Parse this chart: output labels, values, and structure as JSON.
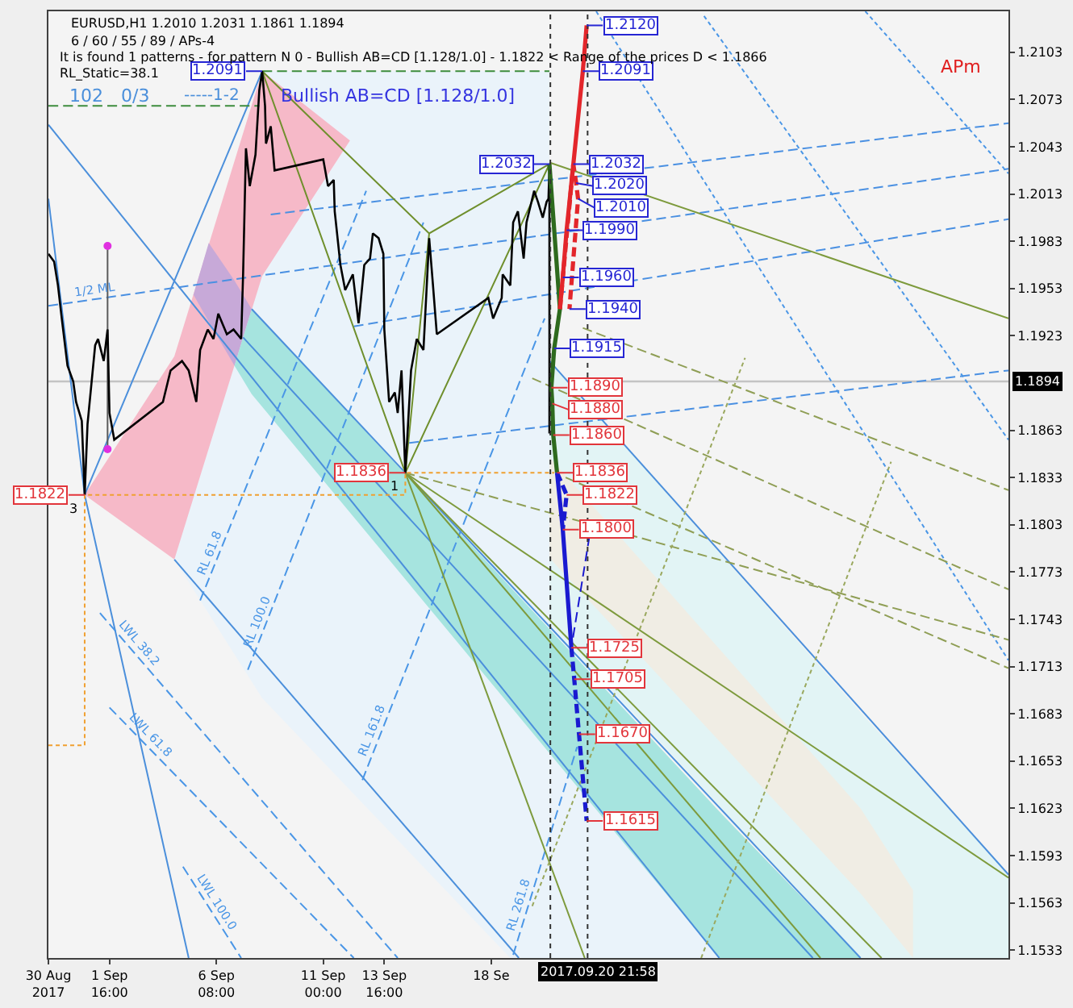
{
  "chart_data": {
    "type": "line",
    "title": "EURUSD,H1 1.2010 1.2031 1.1861 1.1894",
    "subtitle": "6 / 60 / 55 / 89 / APs-4",
    "annotations": [
      "It is found 1 patterns - for pattern N 0 - Bullish AB=CD [1.128/1.0] - 1.1822 < Range of the prices D < 1.1866",
      "RL_Static=38.1",
      "102",
      "0/3",
      "-----1-2",
      "Bullish AB=CD [1.128/1.0]",
      "APm",
      {
        "text": "3",
        "x": "2017-08-31T14:00",
        "y": 1.1822
      },
      {
        "text": "1",
        "x": "2017-09-14T14:00",
        "y": 1.1836
      }
    ],
    "xlim": [
      "2017-08-30T00:00",
      "2017-10-10T22:00"
    ],
    "xticks": [
      {
        "value": "2017-08-30T00:00",
        "label": "30 Aug 2017"
      },
      {
        "value": "2017-09-01T16:00",
        "label": "1 Sep 16:00"
      },
      {
        "value": "2017-09-06T08:00",
        "label": "6 Sep 08:00"
      },
      {
        "value": "2017-09-11T00:00",
        "label": "11 Sep 00:00"
      },
      {
        "value": "2017-09-13T16:00",
        "label": "13 Sep 16:00"
      },
      {
        "value": "2017-09-18T08:00",
        "label": "18 Se"
      }
    ],
    "ylim": [
      1.1528,
      1.2129
    ],
    "yticks": [
      1.2103,
      1.2073,
      1.2043,
      1.2013,
      1.1983,
      1.1953,
      1.1923,
      1.1863,
      1.1833,
      1.1803,
      1.1773,
      1.1743,
      1.1713,
      1.1683,
      1.1653,
      1.1623,
      1.1593,
      1.1563,
      1.1533
    ],
    "ref_lines": [
      {
        "axis": "x",
        "value": "2017-09-20T21:58",
        "label": "2017.09.20 21:58",
        "line_style": "dotted",
        "color": "#333333"
      },
      {
        "axis": "x",
        "value": "2017-09-22T13:00",
        "line_style": "dotted",
        "color": "#333333"
      },
      {
        "axis": "y",
        "value": 1.1894,
        "label": "1.1894",
        "color": "#c4c4c4"
      }
    ],
    "series": [
      {
        "color": "#eaf3fa",
        "x": [
          "2017-09-04T12:00",
          "2017-09-08T08:00",
          "2017-09-19T04:00",
          "2017-09-20T21:00",
          "2017-09-20T21:00",
          "2017-09-28T07:00"
        ],
        "values": [
          null,
          null,
          null,
          null,
          null,
          null
        ],
        "upper": [
          1.1781,
          1.2091,
          1.2091,
          1.2091,
          1.1833,
          1.1528
        ],
        "lower": [
          1.1781,
          1.1693,
          1.1528,
          1.1528,
          1.1528,
          1.1528
        ]
      },
      {
        "color": "#e2f4f5",
        "x": [
          "2017-09-20T21:00",
          "2017-10-04T11:00",
          "2017-10-10T22:00"
        ],
        "values": [
          null,
          null,
          null
        ],
        "upper": [
          1.1907,
          1.1684,
          1.1581
        ],
        "lower": [
          1.1741,
          1.1528,
          1.1528
        ]
      },
      {
        "color": "#f0ede4",
        "x": [
          "2017-09-20T21:00",
          "2017-10-04T11:00",
          "2017-10-06T18:00"
        ],
        "values": [
          null,
          null,
          null
        ],
        "upper": [
          1.1846,
          1.1623,
          1.1571
        ],
        "lower": [
          1.1782,
          1.1569,
          1.1528
        ]
      },
      {
        "color": "#f6b9c8",
        "x": [
          "2017-08-31T14:00",
          "2017-09-04T12:00",
          "2017-09-08T08:00",
          "2017-09-12T04:00"
        ],
        "values": [
          null,
          null,
          null,
          null
        ],
        "upper": [
          1.1822,
          1.191,
          1.2091,
          1.2047
        ],
        "lower": [
          1.1822,
          1.1781,
          1.1961,
          1.2047
        ]
      },
      {
        "color": "#c7a9d8",
        "x": [
          "2017-09-05T08:00",
          "2017-09-06T00:00",
          "2017-09-07T03:00",
          "2017-09-07T21:00"
        ],
        "values": [
          null,
          null,
          null,
          null
        ],
        "upper": [
          1.1949,
          1.1982,
          1.1958,
          1.194
        ],
        "lower": [
          1.1949,
          1.1932,
          1.1904,
          1.194
        ]
      },
      {
        "color": "#a6e4df",
        "x": [
          "2017-09-07T03:00",
          "2017-09-07T21:00",
          "2017-09-28T07:00",
          "2017-10-04T11:00"
        ],
        "values": [
          null,
          null,
          null,
          null
        ],
        "upper": [
          1.1904,
          1.194,
          1.1621,
          1.1528
        ],
        "lower": [
          1.1904,
          1.1886,
          1.1528,
          1.1528
        ]
      },
      {
        "color": "#4b8fdb",
        "x": [
          "2017-08-31T14:00",
          "2017-09-08T08:00"
        ],
        "values": [
          1.1822,
          1.2091
        ]
      },
      {
        "color": "#4b8fdb",
        "x": [
          "2017-08-30T00:00",
          "2017-09-28T07:00"
        ],
        "values": [
          1.2057,
          1.1528
        ]
      },
      {
        "color": "#4b8fdb",
        "x": [
          "2017-09-07T21:00",
          "2017-10-04T11:00"
        ],
        "values": [
          1.194,
          1.1528
        ]
      },
      {
        "color": "#4b8fdb",
        "x": [
          "2017-09-07T12:00",
          "2017-10-02T09:00"
        ],
        "values": [
          1.1922,
          1.1528
        ]
      },
      {
        "color": "#4b8fdb",
        "x": [
          "2017-08-30T00:00",
          "2017-08-31T14:00"
        ],
        "values": [
          1.201,
          1.1822
        ]
      },
      {
        "color": "#4b8fdb",
        "x": [
          "2017-08-31T14:00",
          "2017-09-05T03:00"
        ],
        "values": [
          1.1822,
          1.1528
        ]
      },
      {
        "color": "#4b8fdb",
        "x": [
          "2017-09-20T21:00",
          "2017-10-10T22:00"
        ],
        "values": [
          1.1907,
          1.1581
        ]
      },
      {
        "color": "#4b8fdb",
        "x": [
          "2017-09-04T12:00",
          "2017-09-19T13:00"
        ],
        "values": [
          1.1781,
          1.1528
        ]
      },
      {
        "name": "RL 61.8",
        "color": "#4a96e6",
        "line_style": "dashed",
        "x": [
          "2017-09-05T15:00",
          "2017-09-12T21:00"
        ],
        "values": [
          1.1755,
          1.2015
        ]
      },
      {
        "name": "RL 100.0",
        "color": "#4a96e6",
        "line_style": "dashed",
        "x": [
          "2017-09-07T17:00",
          "2017-09-15T09:00"
        ],
        "values": [
          1.1711,
          1.1995
        ]
      },
      {
        "name": "RL 161.8",
        "color": "#4a96e6",
        "line_style": "dashed",
        "x": [
          "2017-09-12T17:00",
          "2017-09-20T16:00"
        ],
        "values": [
          1.1641,
          1.1934
        ]
      },
      {
        "name": "RL 261.8",
        "color": "#4a96e6",
        "line_style": "dashed",
        "x": [
          "2017-09-19T07:00",
          "2017-09-22T02:00"
        ],
        "values": [
          1.153,
          1.1662
        ]
      },
      {
        "name": "LWL 38.2",
        "color": "#4a96e6",
        "line_style": "dashed",
        "x": [
          "2017-09-01T06:00",
          "2017-09-14T06:00"
        ],
        "values": [
          1.1747,
          1.1528
        ]
      },
      {
        "name": "LWL 61.8",
        "color": "#4a96e6",
        "line_style": "dashed",
        "x": [
          "2017-09-01T16:00",
          "2017-09-12T08:00"
        ],
        "values": [
          1.1687,
          1.1528
        ]
      },
      {
        "name": "LWL 100.0",
        "color": "#4a96e6",
        "line_style": "dashed",
        "x": [
          "2017-09-04T21:00",
          "2017-09-07T10:00"
        ],
        "values": [
          1.1586,
          1.1528
        ]
      },
      {
        "color": "#4a90e2",
        "line_style": "dashed",
        "x": [
          "2017-09-08T17:00",
          "2017-10-10T22:00"
        ],
        "values": [
          1.2,
          1.2058
        ]
      },
      {
        "name": "1/2 ML",
        "color": "#4a90e2",
        "line_style": "dashed",
        "x": [
          "2017-08-30T00:00",
          "2017-10-10T22:00"
        ],
        "values": [
          1.1942,
          1.2029
        ]
      },
      {
        "color": "#4a90e2",
        "line_style": "dashed",
        "x": [
          "2017-09-12T08:00",
          "2017-10-10T22:00"
        ],
        "values": [
          1.1929,
          1.1997
        ]
      },
      {
        "color": "#4a90e2",
        "line_style": "dashed",
        "x": [
          "2017-09-14T18:00",
          "2017-10-10T22:00"
        ],
        "values": [
          1.1855,
          1.1901
        ]
      },
      {
        "color": "#4a96e6",
        "line_style": "dotted",
        "x": [
          "2017-09-27T15:00",
          "2017-10-10T22:00"
        ],
        "values": [
          1.2126,
          1.1857
        ]
      },
      {
        "color": "#4a96e6",
        "line_style": "dotted",
        "x": [
          "2017-09-22T22:00",
          "2017-10-10T22:00"
        ],
        "values": [
          1.2129,
          1.1717
        ]
      },
      {
        "color": "#4a96e6",
        "line_style": "dotted",
        "x": [
          "2017-10-04T16:00",
          "2017-10-10T22:00"
        ],
        "values": [
          1.2129,
          1.2026
        ]
      },
      {
        "color": "#7d9a3c",
        "x": [
          "2017-09-20T21:00",
          "2017-10-10T22:00"
        ],
        "values": [
          1.2033,
          1.1934
        ]
      },
      {
        "color": "#7d9a3c",
        "x": [
          "2017-09-14T14:00",
          "2017-09-22T10:00"
        ],
        "values": [
          1.1836,
          1.1528
        ]
      },
      {
        "color": "#7d9a3c",
        "x": [
          "2017-09-14T14:00",
          "2017-10-02T17:00"
        ],
        "values": [
          1.1836,
          1.1528
        ]
      },
      {
        "color": "#7d9a3c",
        "x": [
          "2017-09-14T14:00",
          "2017-10-10T22:00"
        ],
        "values": [
          1.1836,
          1.1579
        ]
      },
      {
        "color": "#7d9a3c",
        "x": [
          "2017-09-14T14:00",
          "2017-10-05T09:00"
        ],
        "values": [
          1.1836,
          1.1528
        ]
      },
      {
        "color": "#8f9e55",
        "line_style": "dashed",
        "x": [
          "2017-09-14T14:00",
          "2017-10-10T22:00"
        ],
        "values": [
          1.1836,
          1.173
        ]
      },
      {
        "color": "#8f9e55",
        "line_style": "dashed",
        "x": [
          "2017-09-22T08:00",
          "2017-10-10T22:00"
        ],
        "values": [
          1.1928,
          1.1825
        ]
      },
      {
        "color": "#8f9e55",
        "line_style": "dashed",
        "x": [
          "2017-09-20T03:00",
          "2017-10-10T22:00"
        ],
        "values": [
          1.1896,
          1.1762
        ]
      },
      {
        "color": "#8f9e55",
        "line_style": "dashed",
        "x": [
          "2017-09-21T14:00",
          "2017-10-10T22:00"
        ],
        "values": [
          1.1833,
          1.1712
        ]
      },
      {
        "color": "#9aa85e",
        "line_style": "dotted",
        "x": [
          "2017-09-20T03:00",
          "2017-09-29T10:00"
        ],
        "values": [
          1.1561,
          1.1909
        ]
      },
      {
        "color": "#9aa85e",
        "line_style": "dotted",
        "x": [
          "2017-09-27T12:00",
          "2017-10-05T19:00"
        ],
        "values": [
          1.1528,
          1.1843
        ]
      },
      {
        "color": "#3c8c3c",
        "line_style": "dashed",
        "x": [
          "2017-09-08T08:00",
          "2017-09-20T21:00"
        ],
        "values": [
          1.2091,
          1.2091
        ]
      },
      {
        "color": "#3c8c3c",
        "line_style": "dashed",
        "x": [
          "2017-08-30T00:00",
          "2017-09-08T05:00"
        ],
        "values": [
          1.2069,
          1.2069
        ]
      },
      {
        "color": "#5a5a5a",
        "x": [
          "2017-09-01T14:00",
          "2017-09-01T14:00"
        ],
        "values": [
          1.198,
          1.1851
        ]
      },
      {
        "type": "scatter",
        "color": "#e030e0",
        "marker": "circle",
        "x": [
          "2017-09-01T14:00",
          "2017-09-01T14:00"
        ],
        "values": [
          1.198,
          1.1851
        ]
      },
      {
        "color": "#6f8f2c",
        "x": [
          "2017-09-14T14:00",
          "2017-09-08T08:00",
          "2017-09-15T15:00",
          "2017-09-20T21:00",
          "2017-09-14T14:00",
          "2017-09-15T15:00"
        ],
        "values": [
          1.1836,
          1.2091,
          1.1988,
          1.2032,
          1.1836,
          1.1988
        ]
      },
      {
        "color": "#000000",
        "x": [
          "2017-08-30T00:00",
          "2017-08-30T06:00",
          "2017-08-30T10:00",
          "2017-08-30T14:00",
          "2017-08-30T20:00",
          "2017-08-31T02:00",
          "2017-08-31T05:00",
          "2017-08-31T11:00",
          "2017-08-31T14:00",
          "2017-08-31T17:00",
          "2017-09-01T01:00",
          "2017-09-01T04:00",
          "2017-09-01T10:00",
          "2017-09-01T14:00",
          "2017-09-01T16:00",
          "2017-09-01T21:00",
          "2017-09-04T00:00",
          "2017-09-04T08:00",
          "2017-09-04T20:00",
          "2017-09-05T03:00",
          "2017-09-05T11:00",
          "2017-09-05T15:00",
          "2017-09-05T23:00",
          "2017-09-06T05:00",
          "2017-09-06T10:00",
          "2017-09-06T19:00",
          "2017-09-07T02:00",
          "2017-09-07T10:00",
          "2017-09-07T12:00",
          "2017-09-07T15:00",
          "2017-09-07T19:00",
          "2017-09-08T01:00",
          "2017-09-08T05:00",
          "2017-09-08T08:00",
          "2017-09-08T11:00",
          "2017-09-08T12:00",
          "2017-09-08T17:00",
          "2017-09-08T21:00",
          "2017-09-11T00:00",
          "2017-09-11T05:00",
          "2017-09-11T11:00",
          "2017-09-11T12:00",
          "2017-09-11T18:00",
          "2017-09-11T23:00",
          "2017-09-12T07:00",
          "2017-09-12T13:00",
          "2017-09-12T19:00",
          "2017-09-13T01:00",
          "2017-09-13T04:00",
          "2017-09-13T10:00",
          "2017-09-13T15:00",
          "2017-09-13T16:00",
          "2017-09-13T21:00",
          "2017-09-14T03:00",
          "2017-09-14T06:00",
          "2017-09-14T10:00",
          "2017-09-14T14:00",
          "2017-09-14T20:00",
          "2017-09-15T02:00",
          "2017-09-15T09:00",
          "2017-09-15T15:00",
          "2017-09-15T19:00",
          "2017-09-15T23:00",
          "2017-09-18T05:00",
          "2017-09-18T10:00",
          "2017-09-18T19:00",
          "2017-09-18T20:00",
          "2017-09-19T04:00",
          "2017-09-19T07:00",
          "2017-09-19T12:00",
          "2017-09-19T18:00",
          "2017-09-19T21:00",
          "2017-09-20T05:00",
          "2017-09-20T09:00",
          "2017-09-20T14:00",
          "2017-09-20T18:00",
          "2017-09-20T20:00",
          "2017-09-20T21:00",
          "2017-09-20T21:00",
          "2017-09-20T21:00"
        ],
        "values": [
          1.1975,
          1.197,
          1.1955,
          1.1934,
          1.1904,
          1.1894,
          1.1881,
          1.1869,
          1.1822,
          1.1867,
          1.1917,
          1.1921,
          1.1907,
          1.1927,
          1.1874,
          1.1857,
          1.1881,
          1.1901,
          1.1907,
          1.1901,
          1.1881,
          1.1914,
          1.1927,
          1.1921,
          1.1937,
          1.1924,
          1.1927,
          1.1921,
          1.1962,
          1.2042,
          1.2018,
          1.2038,
          1.2079,
          1.2091,
          1.2069,
          1.2045,
          1.2056,
          1.2028,
          1.2035,
          1.2018,
          1.2022,
          1.2002,
          1.1968,
          1.1952,
          1.1962,
          1.1931,
          1.1968,
          1.1972,
          1.1988,
          1.1985,
          1.1975,
          1.1927,
          1.1881,
          1.1887,
          1.1874,
          1.1901,
          1.1836,
          1.1901,
          1.1921,
          1.1914,
          1.1985,
          1.1955,
          1.1924,
          1.1947,
          1.1934,
          1.1947,
          1.1962,
          1.1955,
          1.1995,
          1.2002,
          1.1972,
          1.1995,
          1.2015,
          1.2008,
          1.1998,
          1.2008,
          1.201,
          1.2031,
          1.1861,
          1.1894
        ],
        "value_labels": [
          null,
          null,
          null,
          null,
          null,
          null,
          null,
          null,
          "1.1822",
          null,
          null,
          null,
          null,
          null,
          null,
          null,
          null,
          null,
          null,
          null,
          null,
          null,
          null,
          null,
          null,
          null,
          null,
          null,
          null,
          null,
          null,
          null,
          null,
          "1.2091",
          null,
          null,
          null,
          null,
          null,
          null,
          null,
          null,
          null,
          null,
          null,
          null,
          null,
          null,
          null,
          null,
          null,
          null,
          null,
          null,
          null,
          null,
          "1.1836",
          null,
          null,
          null,
          null,
          null,
          null,
          null,
          null,
          null,
          null,
          null,
          null,
          null,
          null,
          null,
          null,
          null,
          null,
          null,
          null,
          null,
          null,
          null
        ]
      },
      {
        "color": "#2e6a1e",
        "x": [
          "2017-09-20T21:00",
          "2017-09-21T08:00",
          "2017-09-21T02:00",
          "2017-09-20T23:00",
          "2017-09-21T00:00",
          "2017-09-21T01:00",
          "2017-09-21T05:00"
        ],
        "values": [
          1.2032,
          1.194,
          1.1915,
          1.189,
          1.188,
          1.186,
          1.1836
        ],
        "value_labels": [
          "1.2032",
          null,
          "1.1915",
          "1.1890",
          "1.1880",
          "1.1860",
          null
        ]
      },
      {
        "color": "#e3262b",
        "x": [
          "2017-09-21T08:00",
          "2017-09-21T11:00",
          "2017-09-21T15:00",
          "2017-09-22T08:00",
          "2017-09-22T12:00"
        ],
        "values": [
          1.194,
          1.196,
          1.199,
          1.2091,
          1.212
        ],
        "value_labels": [
          null,
          "1.1960",
          "1.1990",
          "1.2091",
          "1.2120"
        ]
      },
      {
        "color": "#e3262b",
        "line_style": "dashed",
        "x": [
          "2017-09-21T08:00",
          "2017-09-21T22:00",
          "2017-09-22T01:00",
          "2017-09-22T03:00",
          "2017-09-21T18:00"
        ],
        "values": [
          1.194,
          1.2032,
          1.202,
          1.201,
          1.194
        ],
        "value_labels": [
          null,
          "1.2032",
          "1.2020",
          "1.2010",
          "1.1940"
        ]
      },
      {
        "color": "#1a1ad0",
        "x": [
          "2017-09-21T05:00",
          "2017-09-21T11:00",
          "2017-09-21T20:00"
        ],
        "values": [
          1.1836,
          1.18,
          1.1725
        ],
        "value_labels": [
          "1.1836",
          "1.1800",
          "1.1725"
        ]
      },
      {
        "color": "#1a1ad0",
        "line_style": "dashed",
        "x": [
          "2017-09-21T20:00",
          "2017-09-21T23:00",
          "2017-09-22T04:00",
          "2017-09-22T12:00"
        ],
        "values": [
          1.1725,
          1.1705,
          1.167,
          1.1615
        ],
        "value_labels": [
          null,
          "1.1705",
          "1.1670",
          "1.1615"
        ]
      },
      {
        "color": "#1a1ad0",
        "line_style": "dashed",
        "x": [
          "2017-09-21T05:00",
          "2017-09-21T15:00",
          "2017-09-21T11:00"
        ],
        "values": [
          1.1836,
          1.1822,
          1.18
        ],
        "value_labels": [
          null,
          "1.1822",
          null
        ]
      },
      {
        "color": "#1a1ad0",
        "line_style": "dashed",
        "x": [
          "2017-09-22T15:00",
          "2017-09-21T20:00"
        ],
        "values": [
          1.1796,
          1.1725
        ]
      },
      {
        "color": "#f0a030",
        "line_style": "dotted",
        "x": [
          "2017-08-30T00:00",
          "2017-08-31T14:00",
          "2017-08-31T14:00",
          "2017-09-14T14:00",
          "2017-09-14T14:00",
          "2017-09-21T02:00"
        ],
        "values": [
          1.1663,
          1.1663,
          1.1822,
          1.1822,
          1.1836,
          1.1836
        ]
      }
    ]
  }
}
